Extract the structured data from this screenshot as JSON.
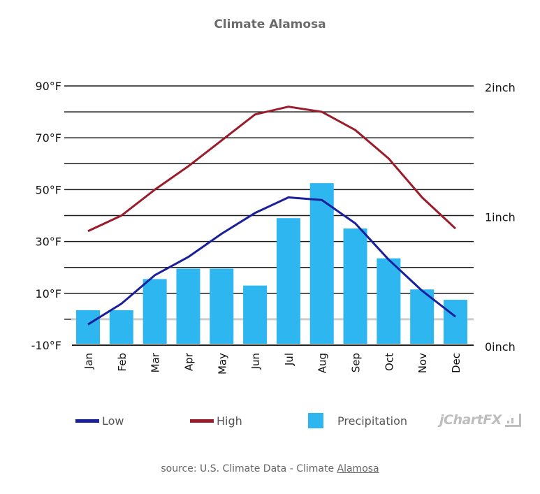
{
  "chart_data": {
    "type": "bar+line",
    "title": "Climate Alamosa",
    "categories": [
      "Jan",
      "Feb",
      "Mar",
      "Apr",
      "May",
      "Jun",
      "Jul",
      "Aug",
      "Sep",
      "Oct",
      "Nov",
      "Dec"
    ],
    "series": [
      {
        "name": "Low",
        "type": "line",
        "axis": "left",
        "color": "#1a1f9c",
        "values": [
          -2,
          6,
          17,
          24,
          33,
          41,
          47,
          46,
          37,
          23,
          11,
          1
        ]
      },
      {
        "name": "High",
        "type": "line",
        "axis": "left",
        "color": "#9b1c2a",
        "values": [
          34,
          40,
          50,
          59,
          69,
          79,
          82,
          80,
          73,
          62,
          47,
          35
        ]
      },
      {
        "name": "Precipitation",
        "type": "bar",
        "axis": "right",
        "color": "#2db6ef",
        "values": [
          0.27,
          0.27,
          0.51,
          0.59,
          0.59,
          0.46,
          0.98,
          1.25,
          0.9,
          0.67,
          0.43,
          0.35
        ]
      }
    ],
    "left_axis": {
      "unit": "°F",
      "ylim": [
        -10,
        90
      ],
      "gridline_step": 10,
      "tick_labels": [
        "90°F",
        "70°F",
        "50°F",
        "30°F",
        "10°F",
        "-10°F"
      ],
      "tick_values": [
        90,
        70,
        50,
        30,
        10,
        -10
      ]
    },
    "right_axis": {
      "unit": "inch",
      "ylim": [
        0,
        2
      ],
      "tick_labels": [
        "2inch",
        "1inch",
        "0inch"
      ],
      "tick_values": [
        2,
        1,
        0
      ]
    },
    "zero_line_value": 0,
    "grid": true,
    "legend_position": "bottom"
  },
  "legend": {
    "items": [
      {
        "label": "Low",
        "kind": "line",
        "color": "#1a1f9c"
      },
      {
        "label": "High",
        "kind": "line",
        "color": "#9b1c2a"
      },
      {
        "label": "Precipitation",
        "kind": "box",
        "color": "#2db6ef"
      }
    ]
  },
  "branding": {
    "text": "jChartFX",
    "icon": "jchartfx-logo-icon"
  },
  "source": {
    "prefix": "source: U.S. Climate Data - Climate ",
    "link_text": "Alamosa"
  }
}
